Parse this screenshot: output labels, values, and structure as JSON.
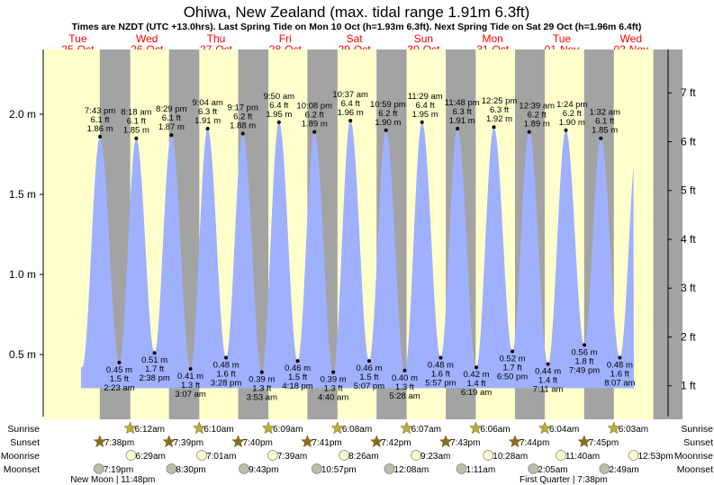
{
  "chart_data": {
    "type": "area",
    "title": "Ohiwa, New Zealand (max. tidal range 1.91m 6.3ft)",
    "subtitle": "Times are NZDT (UTC +13.0hrs). Last Spring Tide on Mon 10 Oct (h=1.93m 6.3ft). Next Spring Tide on Sat 29 Oct (h=1.96m 6.4ft)",
    "ylabel_left_unit": "m",
    "ylabel_right_unit": "ft",
    "ylim_m": [
      0.29,
      2.28
    ],
    "left_ticks": [
      "0.5 m",
      "1.0 m",
      "1.5 m",
      "2.0 m"
    ],
    "left_tick_values": [
      0.5,
      1.0,
      1.5,
      2.0
    ],
    "right_ticks": [
      "1 ft",
      "2 ft",
      "3 ft",
      "4 ft",
      "5 ft",
      "6 ft",
      "7 ft"
    ],
    "right_tick_values": [
      1,
      2,
      3,
      4,
      5,
      6,
      7
    ],
    "days": [
      {
        "dow": "Tue",
        "date": "25-Oct"
      },
      {
        "dow": "Wed",
        "date": "26-Oct"
      },
      {
        "dow": "Thu",
        "date": "27-Oct"
      },
      {
        "dow": "Fri",
        "date": "28-Oct"
      },
      {
        "dow": "Sat",
        "date": "29-Oct"
      },
      {
        "dow": "Sun",
        "date": "30-Oct"
      },
      {
        "dow": "Mon",
        "date": "31-Oct"
      },
      {
        "dow": "Tue",
        "date": "01-Nov"
      },
      {
        "dow": "Wed",
        "date": "02-Nov"
      }
    ],
    "tides": [
      {
        "d": 0,
        "type": "high",
        "time": "7:43 pm",
        "ft": "6.1 ft",
        "m": "1.86 m",
        "h": 1.86
      },
      {
        "d": 1,
        "type": "low",
        "time": "2:23 am",
        "ft": "1.5 ft",
        "m": "0.45 m",
        "h": 0.45
      },
      {
        "d": 1,
        "type": "high",
        "time": "8:18 am",
        "ft": "6.1 ft",
        "m": "1.85 m",
        "h": 1.85
      },
      {
        "d": 1,
        "type": "low",
        "time": "2:38 pm",
        "ft": "1.7 ft",
        "m": "0.51 m",
        "h": 0.51
      },
      {
        "d": 1,
        "type": "high",
        "time": "8:29 pm",
        "ft": "6.1 ft",
        "m": "1.87 m",
        "h": 1.87
      },
      {
        "d": 2,
        "type": "low",
        "time": "3:07 am",
        "ft": "1.3 ft",
        "m": "0.41 m",
        "h": 0.41
      },
      {
        "d": 2,
        "type": "high",
        "time": "9:04 am",
        "ft": "6.3 ft",
        "m": "1.91 m",
        "h": 1.91
      },
      {
        "d": 2,
        "type": "low",
        "time": "3:28 pm",
        "ft": "1.6 ft",
        "m": "0.48 m",
        "h": 0.48
      },
      {
        "d": 2,
        "type": "high",
        "time": "9:17 pm",
        "ft": "6.2 ft",
        "m": "1.88 m",
        "h": 1.88
      },
      {
        "d": 3,
        "type": "low",
        "time": "3:53 am",
        "ft": "1.3 ft",
        "m": "0.39 m",
        "h": 0.39
      },
      {
        "d": 3,
        "type": "high",
        "time": "9:50 am",
        "ft": "6.4 ft",
        "m": "1.95 m",
        "h": 1.95
      },
      {
        "d": 3,
        "type": "low",
        "time": "4:18 pm",
        "ft": "1.5 ft",
        "m": "0.46 m",
        "h": 0.46
      },
      {
        "d": 3,
        "type": "high",
        "time": "10:08 pm",
        "ft": "6.2 ft",
        "m": "1.89 m",
        "h": 1.89
      },
      {
        "d": 4,
        "type": "low",
        "time": "4:40 am",
        "ft": "1.3 ft",
        "m": "0.39 m",
        "h": 0.39
      },
      {
        "d": 4,
        "type": "high",
        "time": "10:37 am",
        "ft": "6.4 ft",
        "m": "1.96 m",
        "h": 1.96
      },
      {
        "d": 4,
        "type": "low",
        "time": "5:07 pm",
        "ft": "1.5 ft",
        "m": "0.46 m",
        "h": 0.46
      },
      {
        "d": 4,
        "type": "high",
        "time": "10:59 pm",
        "ft": "6.2 ft",
        "m": "1.90 m",
        "h": 1.9
      },
      {
        "d": 5,
        "type": "low",
        "time": "5:28 am",
        "ft": "1.3 ft",
        "m": "0.40 m",
        "h": 0.4
      },
      {
        "d": 5,
        "type": "high",
        "time": "11:29 am",
        "ft": "6.4 ft",
        "m": "1.95 m",
        "h": 1.95
      },
      {
        "d": 5,
        "type": "low",
        "time": "5:57 pm",
        "ft": "1.6 ft",
        "m": "0.48 m",
        "h": 0.48
      },
      {
        "d": 5,
        "type": "high",
        "time": "11:48 pm",
        "ft": "6.3 ft",
        "m": "1.91 m",
        "h": 1.91
      },
      {
        "d": 6,
        "type": "low",
        "time": "6:19 am",
        "ft": "1.4 ft",
        "m": "0.42 m",
        "h": 0.42
      },
      {
        "d": 6,
        "type": "high",
        "time": "12:25 pm",
        "ft": "6.3 ft",
        "m": "1.92 m",
        "h": 1.92
      },
      {
        "d": 6,
        "type": "low",
        "time": "6:50 pm",
        "ft": "1.7 ft",
        "m": "0.52 m",
        "h": 0.52
      },
      {
        "d": 7,
        "type": "high",
        "time": "12:39 am",
        "ft": "6.2 ft",
        "m": "1.89 m",
        "h": 1.89
      },
      {
        "d": 7,
        "type": "low",
        "time": "7:11 am",
        "ft": "1.4 ft",
        "m": "0.44 m",
        "h": 0.44
      },
      {
        "d": 7,
        "type": "high",
        "time": "1:24 pm",
        "ft": "6.2 ft",
        "m": "1.90 m",
        "h": 1.9
      },
      {
        "d": 7,
        "type": "low",
        "time": "7:49 pm",
        "ft": "1.8 ft",
        "m": "0.56 m",
        "h": 0.56
      },
      {
        "d": 8,
        "type": "high",
        "time": "1:32 am",
        "ft": "6.1 ft",
        "m": "1.85 m",
        "h": 1.85
      },
      {
        "d": 8,
        "type": "low",
        "time": "8:07 am",
        "ft": "1.6 ft",
        "m": "0.48 m",
        "h": 0.48
      }
    ],
    "rows": {
      "sunrise_label": "Sunrise",
      "sunset_label": "Sunset",
      "moonrise_label": "Moonrise",
      "moonset_label": "Moonset"
    },
    "sunrise": [
      {
        "d": 1,
        "time": "6:12am"
      },
      {
        "d": 2,
        "time": "6:10am"
      },
      {
        "d": 3,
        "time": "6:09am"
      },
      {
        "d": 4,
        "time": "6:08am"
      },
      {
        "d": 5,
        "time": "6:07am"
      },
      {
        "d": 6,
        "time": "6:06am"
      },
      {
        "d": 7,
        "time": "6:04am"
      },
      {
        "d": 8,
        "time": "6:03am"
      }
    ],
    "sunset": [
      {
        "d": 0,
        "time": "7:38pm"
      },
      {
        "d": 1,
        "time": "7:39pm"
      },
      {
        "d": 2,
        "time": "7:40pm"
      },
      {
        "d": 3,
        "time": "7:41pm"
      },
      {
        "d": 4,
        "time": "7:42pm"
      },
      {
        "d": 5,
        "time": "7:43pm"
      },
      {
        "d": 6,
        "time": "7:44pm"
      },
      {
        "d": 7,
        "time": "7:45pm"
      }
    ],
    "moonrise": [
      {
        "d": 1,
        "time": "6:29am"
      },
      {
        "d": 2,
        "time": "7:01am"
      },
      {
        "d": 3,
        "time": "7:39am"
      },
      {
        "d": 4,
        "time": "8:26am"
      },
      {
        "d": 5,
        "time": "9:23am"
      },
      {
        "d": 6,
        "time": "10:28am"
      },
      {
        "d": 7,
        "time": "11:40am"
      },
      {
        "d": 8,
        "time": "12:53pm"
      }
    ],
    "moonset": [
      {
        "d": 0,
        "time": "7:19pm"
      },
      {
        "d": 1,
        "time": "8:30pm"
      },
      {
        "d": 2,
        "time": "9:43pm"
      },
      {
        "d": 3,
        "time": "10:57pm"
      },
      {
        "d": 5,
        "time": "12:08am"
      },
      {
        "d": 6,
        "time": "1:11am"
      },
      {
        "d": 7,
        "time": "2:05am"
      },
      {
        "d": 8,
        "time": "2:49am"
      }
    ],
    "moon_phases": [
      {
        "d": 0,
        "time": "11:48pm",
        "text": "New Moon | 11:48pm"
      },
      {
        "d": 7,
        "time": "7:38pm",
        "text": "First Quarter | 7:38pm"
      }
    ]
  },
  "colors": {
    "day": "#FFFFCC",
    "night": "#A3A3A3",
    "water": "#9FB0FF",
    "day_label": "#FF0000",
    "sunrise_icon": "#B8AE3A",
    "sunset_icon": "#8B6B1E",
    "moonrise_icon": "#FFFFCC",
    "moonset_icon": "#BDBDA8"
  }
}
